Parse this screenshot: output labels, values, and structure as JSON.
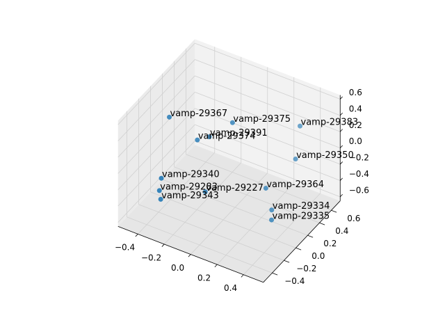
{
  "chart_data": {
    "type": "scatter3d",
    "color": "#1f77b4",
    "grid": true,
    "xlim": [
      -0.55,
      0.55
    ],
    "ylim": [
      -0.55,
      0.75
    ],
    "zlim": [
      -0.65,
      0.65
    ],
    "xticks": [
      {
        "value": -0.4,
        "label": "−0.4"
      },
      {
        "value": -0.2,
        "label": "−0.2"
      },
      {
        "value": 0,
        "label": "0.0"
      },
      0.2,
      0.4
    ],
    "yticks": [
      {
        "value": -0.4,
        "label": "−0.4"
      },
      {
        "value": -0.2,
        "label": "−0.2"
      },
      {
        "value": 0,
        "label": "0.0"
      },
      0.2,
      0.4,
      0.6
    ],
    "zticks": [
      {
        "value": -0.6,
        "label": "−0.6"
      },
      {
        "value": -0.4,
        "label": "−0.4"
      },
      {
        "value": -0.2,
        "label": "−0.2"
      },
      {
        "value": 0,
        "label": "0.0"
      },
      0.2,
      0.4,
      0.6
    ],
    "points": [
      {
        "label": "vamp-29367",
        "x": -0.39,
        "y": -0.04,
        "z": 0.4
      },
      {
        "label": "vamp-29375",
        "x": -0.01,
        "y": 0.18,
        "z": 0.4
      },
      {
        "label": "vamp-29383",
        "x": 0.34,
        "y": 0.54,
        "z": 0.3
      },
      {
        "label": "vamp-29391",
        "x": -0.15,
        "y": 0.1,
        "z": 0.2
      },
      {
        "label": "vamp-29374",
        "x": -0.2,
        "y": 0.01,
        "z": 0.2
      },
      {
        "label": "vamp-29350",
        "x": 0.36,
        "y": 0.42,
        "z": 0
      },
      {
        "label": "vamp-29340",
        "x": -0.37,
        "y": -0.22,
        "z": -0.2
      },
      {
        "label": "vamp-29364",
        "x": 0.22,
        "y": 0.23,
        "z": -0.3
      },
      {
        "label": "vamp-29227",
        "x": -0.14,
        "y": 0.01,
        "z": -0.4
      },
      {
        "label": "vamp-29283",
        "x": -0.38,
        "y": -0.23,
        "z": -0.35
      },
      {
        "label": "vamp-29343",
        "x": -0.37,
        "y": -0.23,
        "z": -0.45
      },
      {
        "label": "vamp-29334",
        "x": 0.26,
        "y": 0.24,
        "z": -0.55
      },
      {
        "label": "vamp-29335",
        "x": 0.29,
        "y": 0.17,
        "z": -0.6
      }
    ]
  }
}
